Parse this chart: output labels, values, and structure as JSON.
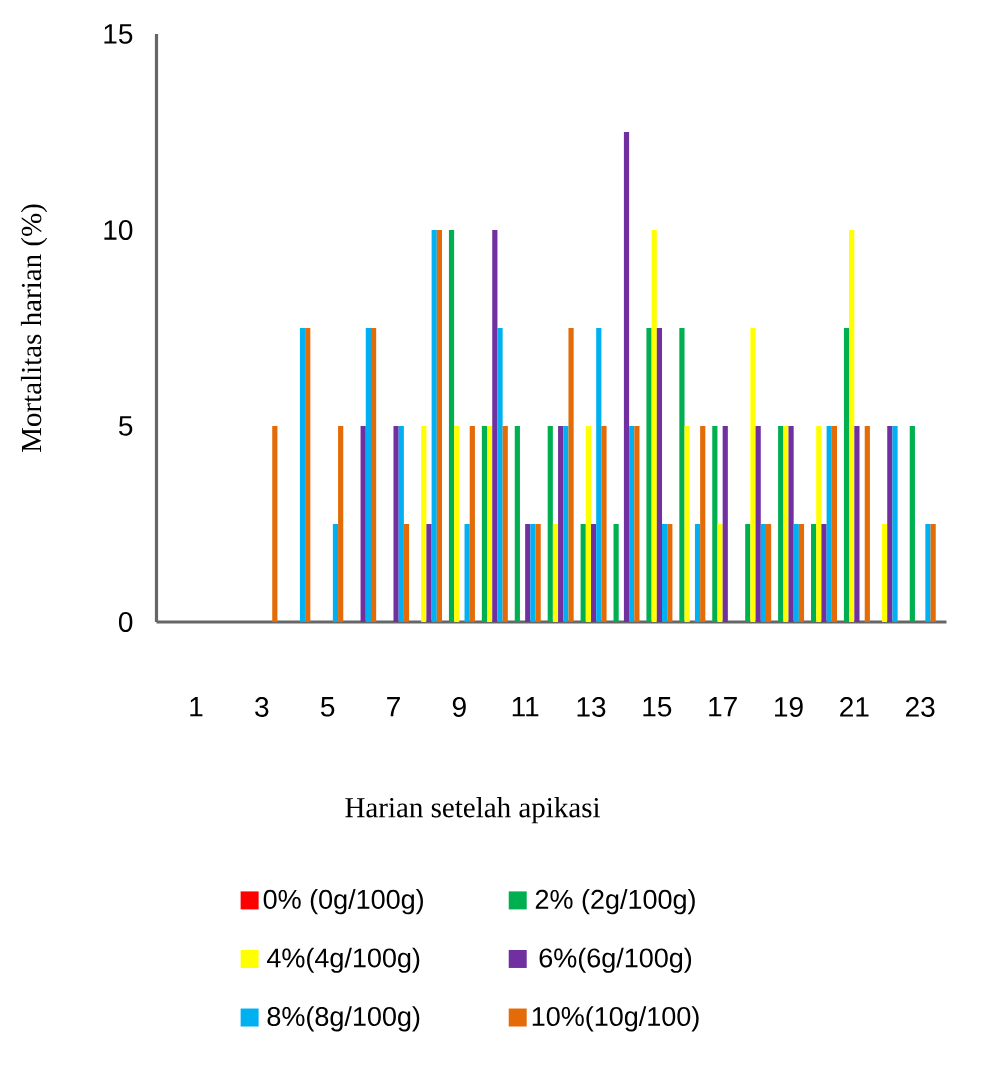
{
  "chart_data": {
    "type": "bar",
    "xlabel": "Harian setelah apikasi",
    "ylabel": "Mortalitas harian (%)",
    "categories": [
      "1",
      null,
      "3",
      null,
      "5",
      null,
      "7",
      null,
      "9",
      null,
      "11",
      null,
      "13",
      null,
      "15",
      null,
      "17",
      null,
      "19",
      null,
      "21",
      null,
      "23"
    ],
    "series": [
      {
        "name": "0% (0g/100g)",
        "color": "#ff0000",
        "values": [
          0,
          0,
          0,
          0,
          0,
          0,
          0,
          0,
          0,
          0,
          0,
          0,
          0,
          0,
          0,
          0,
          0,
          0,
          0,
          0,
          0,
          0,
          0
        ]
      },
      {
        "name": "2% (2g/100g)",
        "color": "#00b050",
        "values": [
          0,
          0,
          0,
          0,
          0,
          0,
          0,
          0,
          10,
          5,
          5,
          5,
          2.5,
          2.5,
          7.5,
          7.5,
          5,
          2.5,
          5,
          2.5,
          7.5,
          0,
          5
        ]
      },
      {
        "name": "4%(4g/100g)",
        "color": "#ffff00",
        "values": [
          0,
          0,
          0,
          0,
          0,
          0,
          0,
          5,
          5,
          5,
          0,
          2.5,
          5,
          0,
          10,
          5,
          2.5,
          7.5,
          5,
          5,
          10,
          2.5,
          0
        ]
      },
      {
        "name": "6%(6g/100g)",
        "color": "#7030a0",
        "values": [
          0,
          0,
          0,
          0,
          0,
          5,
          5,
          2.5,
          0,
          10,
          2.5,
          5,
          2.5,
          12.5,
          7.5,
          0,
          5,
          5,
          5,
          2.5,
          5,
          5,
          0
        ]
      },
      {
        "name": "8%(8g/100g)",
        "color": "#00b0f0",
        "values": [
          0,
          0,
          0,
          7.5,
          2.5,
          7.5,
          5,
          10,
          2.5,
          7.5,
          2.5,
          5,
          7.5,
          5,
          2.5,
          2.5,
          0,
          2.5,
          2.5,
          5,
          0,
          5,
          2.5
        ]
      },
      {
        "name": "10%(10g/100)",
        "color": "#e36c09",
        "values": [
          0,
          0,
          5,
          7.5,
          5,
          7.5,
          2.5,
          10,
          5,
          5,
          2.5,
          7.5,
          5,
          5,
          2.5,
          5,
          0,
          2.5,
          2.5,
          5,
          5,
          0,
          2.5
        ]
      }
    ],
    "ylim": [
      0,
      15
    ],
    "yticks": [
      0,
      5,
      10,
      15
    ],
    "legend": "bottom"
  }
}
